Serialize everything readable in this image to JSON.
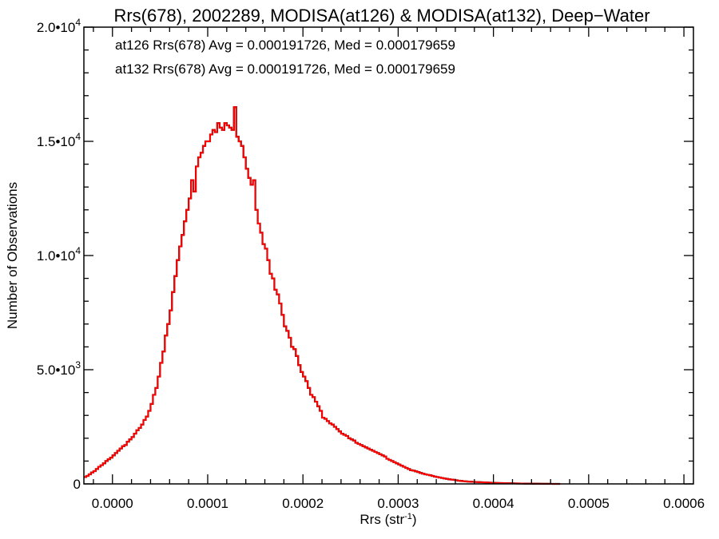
{
  "chart_data": {
    "type": "histogram-step",
    "title": "Rrs(678), 2002289, MODISA(at126) & MODISA(at132), Deep−Water",
    "xlabel": "Rrs (str",
    "xlabel_sup": "-1",
    "xlabel_close": ")",
    "ylabel": "Number of Observations",
    "xlim": [
      -3e-05,
      0.00061
    ],
    "ylim": [
      0,
      20000
    ],
    "x_ticks": [
      {
        "value": 0.0,
        "label": "0.0000"
      },
      {
        "value": 0.0001,
        "label": "0.0001"
      },
      {
        "value": 0.0002,
        "label": "0.0002"
      },
      {
        "value": 0.0003,
        "label": "0.0003"
      },
      {
        "value": 0.0004,
        "label": "0.0004"
      },
      {
        "value": 0.0005,
        "label": "0.0005"
      },
      {
        "value": 0.0006,
        "label": "0.0006"
      }
    ],
    "y_ticks": [
      {
        "value": 0,
        "mant": "0",
        "exp": ""
      },
      {
        "value": 5000,
        "mant": "5.0•",
        "exp": "3"
      },
      {
        "value": 10000,
        "mant": "1.0•",
        "exp": "4"
      },
      {
        "value": 15000,
        "mant": "1.5•",
        "exp": "4"
      },
      {
        "value": 20000,
        "mant": "2.0•",
        "exp": "4"
      }
    ],
    "y_minor_step": 1000,
    "x_minor_step": 2e-05,
    "annotations": [
      {
        "text": "at126 Rrs(678) Avg = 0.000191726, Med = 0.000179659",
        "color": "#000000"
      },
      {
        "text": "at132 Rrs(678) Avg = 0.000191726, Med = 0.000179659",
        "color": "#ff0000"
      }
    ],
    "series": [
      {
        "key": "at126",
        "color": "#000000"
      },
      {
        "key": "at132",
        "color": "#ff0000"
      }
    ],
    "bin_width": 2.5e-06,
    "x_start": -3e-05,
    "values": [
      300,
      350,
      420,
      500,
      560,
      650,
      750,
      820,
      900,
      1000,
      1080,
      1150,
      1250,
      1350,
      1450,
      1550,
      1650,
      1700,
      1850,
      1950,
      2050,
      2200,
      2350,
      2450,
      2600,
      2800,
      2950,
      3200,
      3500,
      3900,
      4200,
      4700,
      5300,
      5800,
      6500,
      7000,
      7600,
      8400,
      9100,
      9800,
      10400,
      10900,
      11500,
      12000,
      12500,
      13300,
      12800,
      13900,
      14300,
      14500,
      14800,
      15000,
      15000,
      15300,
      15500,
      15400,
      15800,
      15600,
      15500,
      15800,
      15700,
      15600,
      15500,
      16500,
      15200,
      15000,
      14800,
      14300,
      13800,
      13400,
      13100,
      13300,
      12000,
      11400,
      11000,
      10500,
      10300,
      9800,
      9200,
      9000,
      8500,
      8300,
      7900,
      7400,
      6900,
      6700,
      6400,
      6000,
      5900,
      5600,
      5200,
      4900,
      4700,
      4500,
      4200,
      3900,
      3800,
      3600,
      3400,
      3200,
      2900,
      2850,
      2750,
      2650,
      2600,
      2500,
      2400,
      2300,
      2200,
      2150,
      2100,
      2000,
      1950,
      1900,
      1800,
      1750,
      1700,
      1650,
      1600,
      1550,
      1500,
      1450,
      1400,
      1350,
      1300,
      1250,
      1200,
      1100,
      1050,
      1000,
      950,
      900,
      850,
      800,
      750,
      700,
      650,
      600,
      580,
      550,
      520,
      480,
      450,
      420,
      400,
      380,
      350,
      320,
      300,
      280,
      260,
      240,
      220,
      200,
      190,
      180,
      160,
      140,
      130,
      120,
      110,
      100,
      95,
      90,
      85,
      80,
      75,
      70,
      65,
      60,
      55,
      50,
      45,
      40,
      38,
      35,
      32,
      30,
      28,
      25,
      22,
      20,
      18,
      16,
      15,
      14,
      12,
      11,
      10,
      9,
      8,
      7,
      6,
      5,
      4,
      3,
      2,
      1,
      1,
      0
    ]
  }
}
